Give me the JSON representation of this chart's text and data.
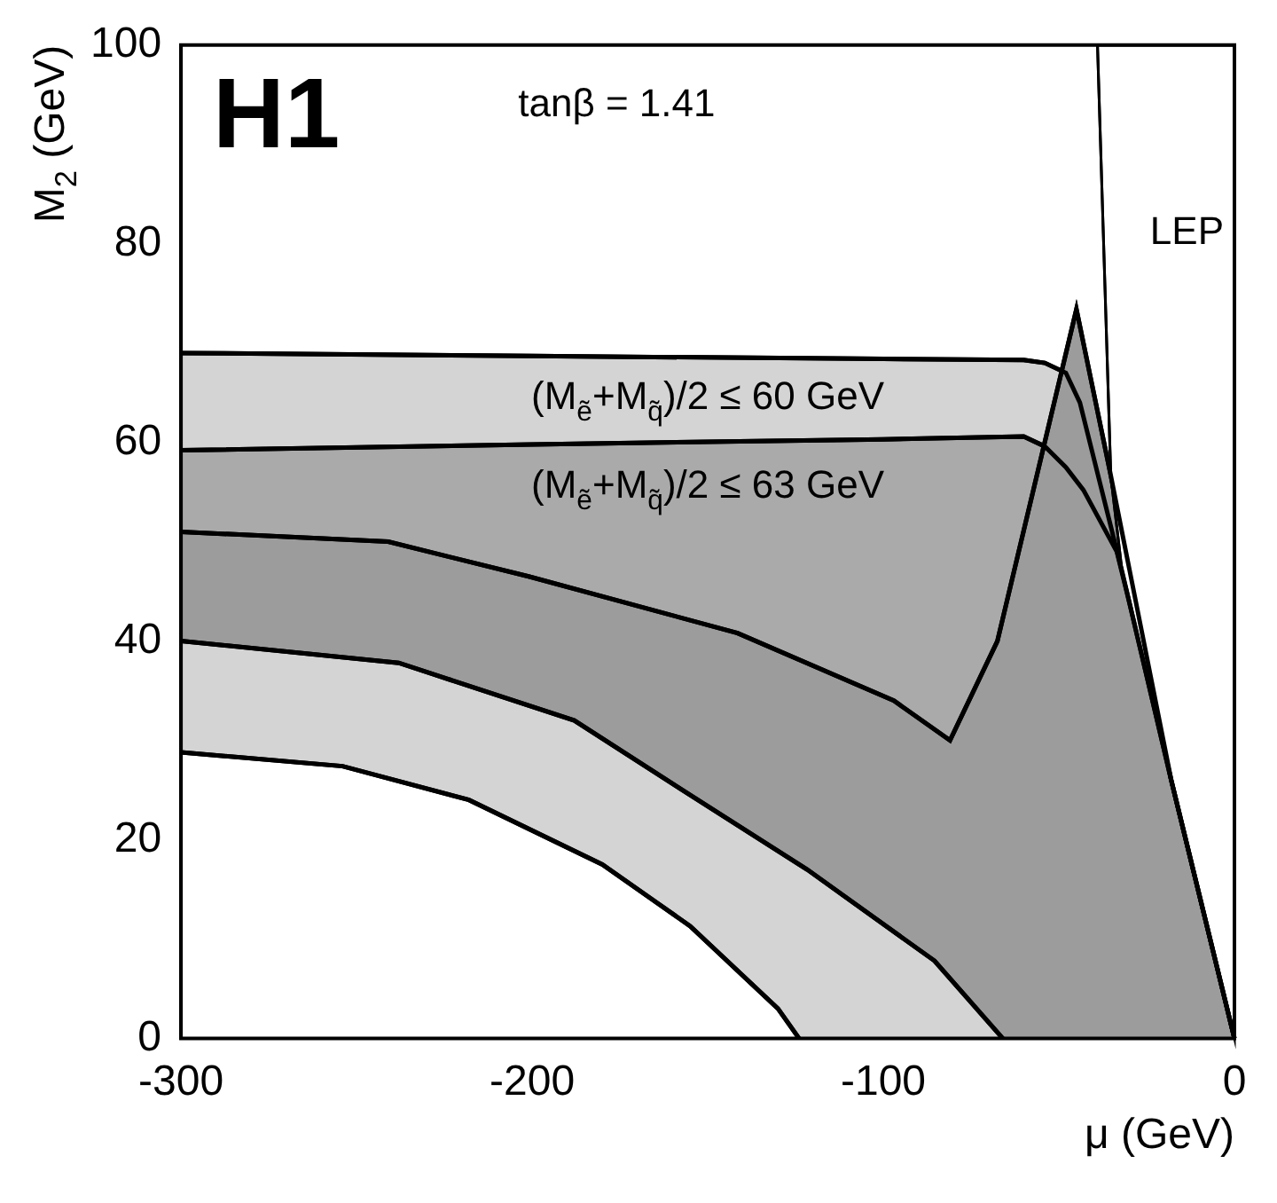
{
  "chart_data": {
    "type": "area",
    "xlabel": "μ (GeV)",
    "ylabel": "M$_{2}$ (GeV)",
    "annotations": [
      "H1",
      "tanβ = 1.41"
    ],
    "xlim": [
      -300,
      0
    ],
    "xticks": [
      -300,
      -200,
      -100,
      0
    ],
    "ylim": [
      0,
      100
    ],
    "yticks": [
      0,
      20,
      40,
      60,
      80,
      100
    ],
    "grid": false,
    "legend": false,
    "series": [
      {
        "name": "(M$_{ẽ}$+M$_{q̃}$)/2 ≤ 60 GeV",
        "color": "#d4d4d4",
        "x": [
          -300,
          -200,
          -100,
          -60,
          -54,
          -48,
          -44,
          -38,
          -32,
          -18,
          0
        ],
        "values": [
          69,
          68.7,
          68.4,
          68.3,
          68,
          67,
          64,
          55.5,
          47,
          26,
          0
        ]
      },
      {
        "name": "(M$_{ẽ}$+M$_{q̃}$)/2 ≤ 63 GeV",
        "color": "#aaaaaa",
        "x": [
          -300,
          -200,
          -100,
          -60,
          -54,
          -48,
          -43,
          -33.5,
          -30,
          -18,
          0
        ],
        "values": [
          59.2,
          59.8,
          60.3,
          60.6,
          59.6,
          57.5,
          55.2,
          49,
          44,
          26,
          0
        ]
      },
      {
        "color": "#9c9c9c",
        "x": [
          -300,
          -241,
          -201,
          -141.5,
          -97,
          -81,
          -67.5,
          -45,
          -35.4,
          -18,
          0
        ],
        "values": [
          51,
          50,
          46.5,
          40.8,
          34,
          30,
          40,
          73.4,
          57,
          26,
          0
        ]
      },
      {
        "color": "#d4d4d4",
        "x": [
          -300,
          -238,
          -188,
          -155,
          -121.7,
          -85.4,
          -66
        ],
        "values": [
          40,
          37.8,
          32,
          24.5,
          17,
          7.8,
          0
        ]
      },
      {
        "color": "#ffffff",
        "x": [
          -300,
          -254,
          -218,
          -180,
          -155,
          -130,
          -124
        ],
        "values": [
          28.8,
          27.4,
          24,
          17.5,
          11.3,
          3,
          0
        ]
      },
      {
        "name": "LEP",
        "color": "#ffffff",
        "x": [
          -39,
          -35.2,
          -32,
          -18,
          0,
          0,
          -39
        ],
        "values": [
          100,
          56.6,
          47,
          26,
          0,
          100,
          100
        ]
      }
    ]
  }
}
